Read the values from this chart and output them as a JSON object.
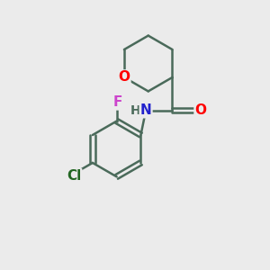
{
  "background_color": "#ebebeb",
  "bond_color": "#4a6a5a",
  "bond_width": 1.8,
  "atom_colors": {
    "O": "#ff0000",
    "N": "#2222cc",
    "F": "#cc44cc",
    "Cl": "#226622",
    "H": "#4a6a5a",
    "C": "#4a6a5a"
  },
  "font_size": 10,
  "font_size_label": 11
}
